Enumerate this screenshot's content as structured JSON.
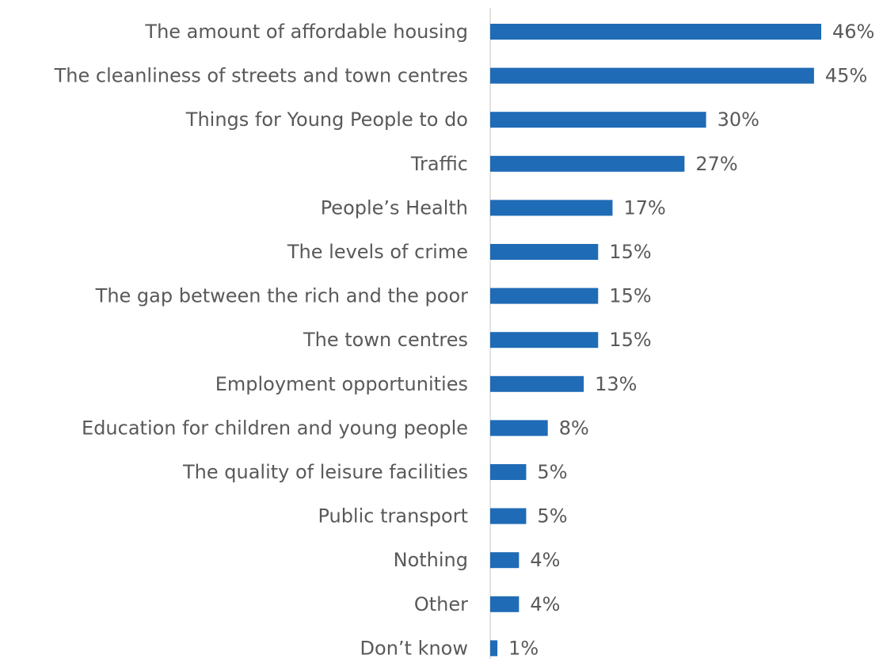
{
  "chart_data": {
    "type": "bar",
    "orientation": "horizontal",
    "categories": [
      "The amount of affordable housing",
      "The cleanliness of streets and town centres",
      "Things for Young People to do",
      "Traffic",
      "People’s Health",
      "The levels of crime",
      "The gap between the rich and the poor",
      "The town centres",
      "Employment opportunities",
      "Education for children and young people",
      "The quality of leisure facilities",
      "Public transport",
      "Nothing",
      "Other ",
      "Don’t know"
    ],
    "values": [
      46,
      45,
      30,
      27,
      17,
      15,
      15,
      15,
      13,
      8,
      5,
      5,
      4,
      4,
      1
    ],
    "value_labels": [
      "46%",
      "45%",
      "30%",
      "27%",
      "17%",
      "15%",
      "15%",
      "15%",
      "13%",
      "8%",
      "5%",
      "5%",
      "4%",
      "4%",
      "1%"
    ],
    "xlim": [
      0,
      46
    ],
    "grid": false,
    "legend": "none",
    "bar_color": "#1F6BB6",
    "axis_color": "#D9D9D9",
    "text_color": "#595959"
  }
}
